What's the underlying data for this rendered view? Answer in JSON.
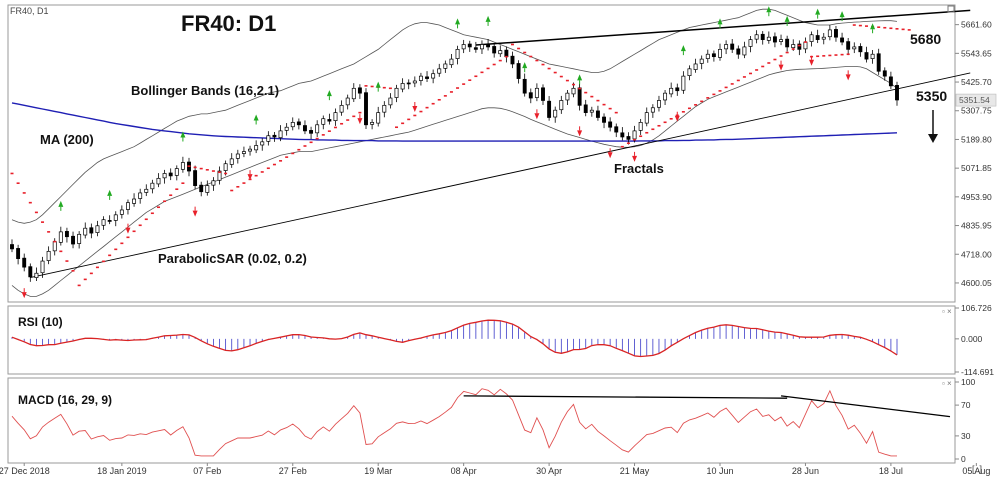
{
  "header": {
    "symbol_label": "FR40, D1",
    "title": "FR40: D1"
  },
  "annotations": {
    "bollinger": "Bollinger Bands (16,2.1)",
    "ma": "MA (200)",
    "parabolic_sar": "ParabolicSAR (0.02, 0.2)",
    "fractals": "Fractals",
    "level_high": "5680",
    "level_low": "5350",
    "corner_marker": "[..]"
  },
  "colors": {
    "bull_candle": "#ffffff",
    "bear_candle": "#000000",
    "ma_line": "#1f1fb4",
    "bollinger": "#555555",
    "sar": "#e8202a",
    "fractal_up": "#22aa22",
    "fractal_down": "#e8202a",
    "rsi_line": "#d92424",
    "rsi_hist": "#3a3ac8",
    "macd_line": "#e05050",
    "trendline": "#000000"
  },
  "chart_data": [
    {
      "type": "candlestick",
      "panel": "price",
      "ylim": [
        4530,
        5730
      ],
      "y_ticks": [
        "5661.60",
        "5543.65",
        "5425.70",
        "5307.75",
        "5189.80",
        "5071.85",
        "4953.90",
        "4835.95",
        "4718.00",
        "4600.05"
      ],
      "current_price_label": "5351.54",
      "x_tick_labels": [
        "27 Dec 2018",
        "18 Jan 2019",
        "07 Feb",
        "27 Feb",
        "19 Mar",
        "08 Apr",
        "30 Apr",
        "21 May",
        "10 Jun",
        "28 Jun",
        "18 Jul",
        "05 Aug"
      ],
      "x_tick_index": [
        2,
        18,
        32,
        46,
        60,
        74,
        88,
        102,
        116,
        130,
        144,
        158
      ],
      "close": [
        4740,
        4700,
        4665,
        4625,
        4640,
        4690,
        4730,
        4770,
        4810,
        4790,
        4760,
        4800,
        4825,
        4805,
        4835,
        4860,
        4855,
        4880,
        4900,
        4930,
        4945,
        4970,
        4985,
        5010,
        5030,
        5050,
        5040,
        5070,
        5095,
        5060,
        5000,
        4975,
        5000,
        5020,
        5060,
        5090,
        5110,
        5130,
        5140,
        5150,
        5165,
        5180,
        5205,
        5200,
        5225,
        5240,
        5260,
        5250,
        5225,
        5215,
        5250,
        5275,
        5265,
        5300,
        5330,
        5360,
        5400,
        5380,
        5250,
        5260,
        5300,
        5330,
        5360,
        5400,
        5420,
        5420,
        5430,
        5450,
        5440,
        5460,
        5480,
        5500,
        5520,
        5560,
        5580,
        5570,
        5560,
        5580,
        5570,
        5545,
        5555,
        5530,
        5500,
        5440,
        5380,
        5360,
        5400,
        5350,
        5280,
        5310,
        5350,
        5380,
        5400,
        5330,
        5300,
        5310,
        5280,
        5260,
        5240,
        5220,
        5200,
        5190,
        5225,
        5260,
        5300,
        5320,
        5350,
        5380,
        5400,
        5390,
        5450,
        5480,
        5500,
        5520,
        5540,
        5530,
        5560,
        5580,
        5560,
        5540,
        5570,
        5600,
        5620,
        5600,
        5610,
        5590,
        5600,
        5570,
        5580,
        5560,
        5590,
        5620,
        5600,
        5610,
        5640,
        5610,
        5590,
        5560,
        5570,
        5550,
        5520,
        5540,
        5470,
        5450,
        5410,
        5352
      ],
      "bollinger_upper": [
        4860,
        4850,
        4845,
        4850,
        4860,
        4880,
        4905,
        4930,
        4955,
        4980,
        5005,
        5030,
        5055,
        5075,
        5095,
        5110,
        5120,
        5130,
        5140,
        5150,
        5160,
        5175,
        5190,
        5205,
        5220,
        5235,
        5250,
        5265,
        5275,
        5285,
        5290,
        5295,
        5295,
        5300,
        5305,
        5310,
        5320,
        5330,
        5340,
        5350,
        5360,
        5370,
        5380,
        5385,
        5390,
        5400,
        5410,
        5420,
        5425,
        5430,
        5440,
        5450,
        5460,
        5470,
        5480,
        5490,
        5500,
        5515,
        5530,
        5545,
        5560,
        5580,
        5600,
        5620,
        5640,
        5655,
        5665,
        5670,
        5670,
        5665,
        5660,
        5650,
        5640,
        5630,
        5620,
        5615,
        5610,
        5605,
        5600,
        5590,
        5580,
        5570,
        5560,
        5550,
        5540,
        5530,
        5520,
        5510,
        5500,
        5495,
        5490,
        5485,
        5480,
        5475,
        5470,
        5465,
        5465,
        5470,
        5480,
        5495,
        5510,
        5525,
        5540,
        5555,
        5570,
        5585,
        5600,
        5610,
        5620,
        5630,
        5640,
        5650,
        5655,
        5660,
        5665,
        5670,
        5675,
        5680,
        5685,
        5690,
        5700,
        5710,
        5720,
        5725,
        5725,
        5720,
        5710,
        5700,
        5690,
        5680,
        5670,
        5665,
        5660,
        5660,
        5660,
        5665,
        5668,
        5670,
        5672,
        5673,
        5675,
        5676,
        5677,
        5678,
        5678,
        5675
      ],
      "bollinger_lower": [
        4590,
        4570,
        4555,
        4545,
        4545,
        4555,
        4570,
        4590,
        4610,
        4630,
        4650,
        4670,
        4690,
        4710,
        4730,
        4750,
        4770,
        4790,
        4810,
        4830,
        4850,
        4870,
        4890,
        4905,
        4920,
        4935,
        4945,
        4955,
        4965,
        4975,
        4985,
        4995,
        5005,
        5015,
        5025,
        5035,
        5045,
        5055,
        5065,
        5075,
        5085,
        5095,
        5105,
        5115,
        5125,
        5130,
        5135,
        5140,
        5140,
        5140,
        5145,
        5150,
        5155,
        5160,
        5165,
        5170,
        5175,
        5180,
        5185,
        5190,
        5195,
        5200,
        5205,
        5210,
        5215,
        5220,
        5228,
        5236,
        5244,
        5252,
        5260,
        5268,
        5276,
        5284,
        5292,
        5300,
        5308,
        5316,
        5320,
        5320,
        5318,
        5312,
        5304,
        5294,
        5284,
        5272,
        5262,
        5252,
        5242,
        5232,
        5222,
        5212,
        5205,
        5198,
        5190,
        5183,
        5176,
        5170,
        5165,
        5160,
        5158,
        5157,
        5160,
        5165,
        5175,
        5188,
        5205,
        5225,
        5245,
        5265,
        5285,
        5305,
        5325,
        5340,
        5355,
        5365,
        5375,
        5385,
        5395,
        5405,
        5415,
        5425,
        5435,
        5445,
        5455,
        5462,
        5468,
        5473,
        5476,
        5478,
        5479,
        5480,
        5481,
        5482,
        5484,
        5486,
        5488,
        5490,
        5490,
        5488,
        5480,
        5465,
        5450,
        5435,
        5420,
        5400
      ],
      "ma200": [
        5340,
        5335,
        5330,
        5325,
        5320,
        5315,
        5310,
        5305,
        5300,
        5295,
        5290,
        5285,
        5280,
        5275,
        5270,
        5265,
        5260,
        5255,
        5251,
        5247,
        5243,
        5239,
        5235,
        5231,
        5228,
        5225,
        5222,
        5219,
        5216,
        5213,
        5211,
        5209,
        5207,
        5205,
        5203,
        5202,
        5201,
        5200,
        5199,
        5198,
        5197,
        5196,
        5195,
        5194,
        5193,
        5192,
        5191,
        5190,
        5189,
        5189,
        5188,
        5188,
        5187,
        5187,
        5186,
        5186,
        5185,
        5185,
        5185,
        5185,
        5184,
        5184,
        5184,
        5184,
        5183,
        5183,
        5183,
        5183,
        5183,
        5183,
        5183,
        5183,
        5183,
        5183,
        5183,
        5183,
        5183,
        5183,
        5183,
        5183,
        5183,
        5183,
        5183,
        5183,
        5183,
        5183,
        5183,
        5183,
        5183,
        5183,
        5183,
        5183,
        5183,
        5183,
        5183,
        5183,
        5183,
        5183,
        5183,
        5183,
        5183,
        5183,
        5183,
        5184,
        5184,
        5184,
        5184,
        5185,
        5185,
        5185,
        5186,
        5186,
        5187,
        5187,
        5188,
        5188,
        5189,
        5190,
        5190,
        5191,
        5192,
        5193,
        5194,
        5195,
        5196,
        5197,
        5198,
        5199,
        5200,
        5201,
        5202,
        5203,
        5204,
        5205,
        5206,
        5207,
        5208,
        5209,
        5210,
        5211,
        5212,
        5213,
        5214,
        5215,
        5216,
        5217
      ],
      "sar_segments": [
        {
          "start": 0,
          "end": 10,
          "from": 5050,
          "to": 4650
        },
        {
          "start": 11,
          "end": 28,
          "from": 4590,
          "to": 5010
        },
        {
          "start": 29,
          "end": 35,
          "from": 5080,
          "to": 5050
        },
        {
          "start": 36,
          "end": 57,
          "from": 4980,
          "to": 5300
        },
        {
          "start": 58,
          "end": 62,
          "from": 5410,
          "to": 5400
        },
        {
          "start": 63,
          "end": 81,
          "from": 5240,
          "to": 5530
        },
        {
          "start": 82,
          "end": 99,
          "from": 5580,
          "to": 5300
        },
        {
          "start": 100,
          "end": 130,
          "from": 5160,
          "to": 5590
        },
        {
          "start": 131,
          "end": 137,
          "from": 5530,
          "to": 5540
        },
        {
          "start": 138,
          "end": 147,
          "from": 5660,
          "to": 5640
        }
      ],
      "fractals_up": [
        8,
        16,
        28,
        40,
        52,
        60,
        73,
        78,
        84,
        93,
        110,
        116,
        124,
        127,
        132,
        136,
        141
      ],
      "fractals_down": [
        2,
        19,
        30,
        39,
        57,
        66,
        86,
        93,
        98,
        102,
        109,
        126,
        131,
        137
      ],
      "levels": [
        5680,
        5350
      ],
      "trendlines": [
        {
          "from": [
            3,
            4622
          ],
          "to": [
            157,
            5463
          ]
        },
        {
          "from": [
            76,
            5578
          ],
          "to": [
            157,
            5720
          ]
        }
      ]
    },
    {
      "type": "line",
      "panel": "RSI",
      "name": "RSI (10)",
      "y_ticks": [
        "106.726",
        "0.000",
        "-114.691"
      ],
      "ylim": [
        -114.691,
        106.726
      ]
    },
    {
      "type": "line",
      "panel": "MACD",
      "name": "MACD (16, 29, 9)",
      "y_ticks": [
        "100",
        "70",
        "30",
        "0"
      ],
      "ylim": [
        0,
        100
      ]
    }
  ]
}
